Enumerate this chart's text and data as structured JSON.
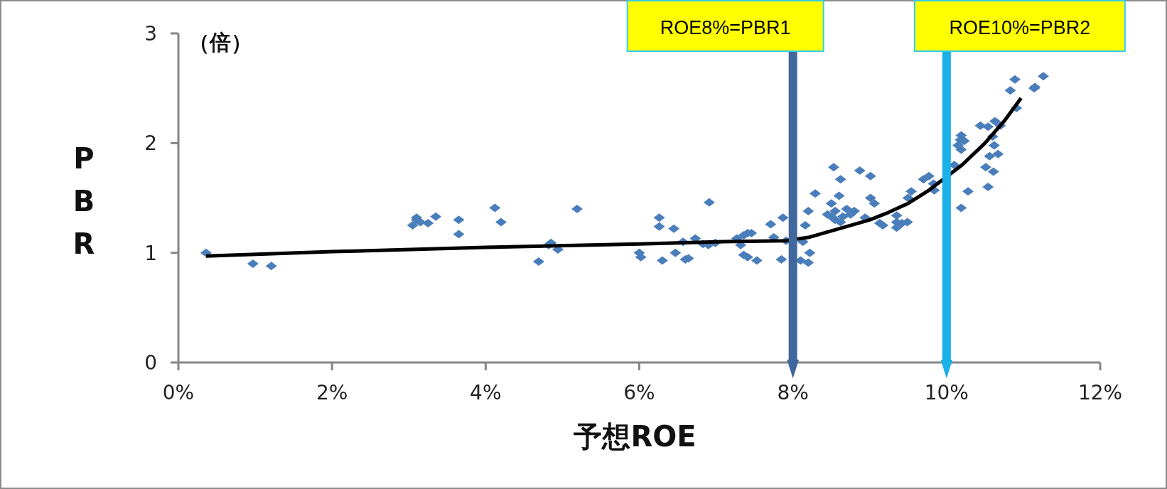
{
  "chart_data": {
    "type": "scatter",
    "xlabel": "予想ROE",
    "ylabel": "PBR",
    "annotations": [
      "（倍）"
    ],
    "xlim": [
      0,
      12
    ],
    "ylim": [
      0,
      3
    ],
    "xticks": [
      {
        "value": 0,
        "label": "0%"
      },
      {
        "value": 2,
        "label": "2%"
      },
      {
        "value": 4,
        "label": "4%"
      },
      {
        "value": 6,
        "label": "6%"
      },
      {
        "value": 8,
        "label": "8%"
      },
      {
        "value": 10,
        "label": "10%"
      },
      {
        "value": 12,
        "label": "12%"
      }
    ],
    "yticks": [
      0,
      1,
      2,
      3
    ],
    "marker": "diamond",
    "ref_lines": [
      {
        "axis": "x",
        "value": 8,
        "label": "ROE8%=PBR1",
        "color": "#41689c"
      },
      {
        "axis": "x",
        "value": 10,
        "label": "ROE10%=PBR2",
        "color": "#1ab0e8"
      }
    ],
    "series": [
      {
        "type": "scatter",
        "color": "#4a7ebb",
        "x": [
          0.36,
          0.97,
          1.21,
          3.05,
          3.1,
          3.15,
          3.25,
          3.35,
          3.1,
          3.65,
          3.65,
          4.12,
          4.2,
          4.69,
          4.85,
          4.82,
          4.94,
          5.19,
          6.0,
          6.02,
          6.26,
          6.26,
          6.3,
          6.45,
          6.47,
          6.6,
          6.64,
          6.57,
          6.73,
          6.83,
          6.9,
          6.91,
          6.99,
          7.27,
          7.32,
          7.36,
          7.41,
          7.36,
          7.41,
          7.53,
          7.46,
          7.71,
          7.75,
          7.85,
          7.91,
          7.87,
          8.2,
          8.16,
          8.13,
          8.22,
          8.2,
          8.1,
          8.29,
          8.53,
          8.62,
          8.87,
          9.01,
          8.5,
          8.55,
          8.6,
          8.65,
          8.7,
          8.55,
          8.75,
          8.5,
          8.62,
          8.8,
          8.45,
          9.01,
          9.06,
          8.94,
          9.13,
          9.17,
          9.35,
          9.35,
          9.35,
          9.49,
          9.42,
          9.54,
          9.5,
          9.7,
          9.77,
          9.84,
          9.83,
          10.1,
          10.19,
          10.18,
          10.15,
          10.19,
          10.23,
          10.28,
          10.19,
          10.44,
          10.54,
          10.51,
          10.61,
          10.56,
          10.67,
          10.6,
          10.62,
          10.63,
          10.7,
          10.54,
          10.91,
          10.83,
          10.89,
          11.14,
          11.15,
          11.26
        ],
        "values": [
          1.0,
          0.9,
          0.88,
          1.25,
          1.3,
          1.28,
          1.27,
          1.33,
          1.32,
          1.17,
          1.3,
          1.41,
          1.28,
          0.92,
          1.09,
          1.07,
          1.03,
          1.4,
          1.0,
          0.96,
          1.32,
          1.24,
          0.93,
          1.22,
          1.0,
          0.94,
          0.95,
          1.1,
          1.13,
          1.08,
          1.07,
          1.46,
          1.09,
          1.13,
          1.07,
          1.16,
          1.18,
          0.98,
          0.96,
          0.93,
          1.18,
          1.26,
          1.14,
          0.94,
          1.11,
          1.32,
          1.38,
          1.25,
          1.1,
          1.0,
          0.91,
          0.93,
          1.54,
          1.78,
          1.67,
          1.75,
          1.7,
          1.45,
          1.38,
          1.52,
          1.33,
          1.4,
          1.3,
          1.35,
          1.33,
          1.28,
          1.38,
          1.35,
          1.5,
          1.45,
          1.32,
          1.27,
          1.25,
          1.34,
          1.28,
          1.23,
          1.28,
          1.27,
          1.56,
          1.5,
          1.67,
          1.7,
          1.57,
          1.63,
          1.8,
          2.07,
          2.03,
          1.98,
          1.94,
          2.02,
          1.56,
          1.41,
          2.16,
          1.6,
          1.78,
          1.74,
          1.88,
          1.9,
          2.06,
          1.98,
          2.2,
          2.16,
          2.15,
          2.32,
          2.48,
          2.58,
          2.5,
          2.51,
          2.61
        ]
      },
      {
        "type": "line",
        "color": "#000000",
        "marker": "none",
        "x": [
          0.36,
          2,
          4,
          6,
          7,
          7.9,
          8.2,
          8.5,
          8.75,
          9,
          9.25,
          9.5,
          9.75,
          10.2,
          10.5,
          10.75,
          10.97
        ],
        "values": [
          0.97,
          1.01,
          1.05,
          1.08,
          1.1,
          1.11,
          1.14,
          1.2,
          1.25,
          1.3,
          1.37,
          1.45,
          1.56,
          1.8,
          2.0,
          2.2,
          2.41
        ]
      }
    ]
  }
}
